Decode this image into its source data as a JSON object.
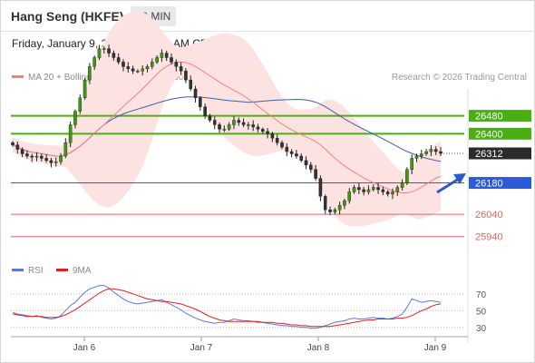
{
  "header": {
    "title": "Hang Seng (HKFE)",
    "timeframe": "30 MIN"
  },
  "datetime": "Friday, January 9, 2026 12:32:21 AM CET",
  "legend": {
    "ma20": {
      "label": "MA 20 + Bollinger Bands",
      "color": "#f08080"
    },
    "ma50": {
      "label": "MA 50",
      "color": "#3e5fa8"
    }
  },
  "credit": "Research © 2026 Trading Central",
  "rsi_legend": {
    "rsi": {
      "label": "RSI",
      "color": "#5b7bd6"
    },
    "ma9": {
      "label": "9MA",
      "color": "#e02020"
    }
  },
  "chart_data": {
    "type": "candlestick",
    "x_labels": [
      "Jan 6",
      "Jan 7",
      "Jan 8",
      "Jan 9"
    ],
    "price_range": [
      25870,
      26600
    ],
    "levels": [
      {
        "value": 26480,
        "label": "26480",
        "kind": "resistance",
        "color": "#4caf11"
      },
      {
        "value": 26400,
        "label": "26400",
        "kind": "resistance",
        "color": "#4caf11"
      },
      {
        "value": 26312,
        "label": "26312",
        "kind": "last",
        "color": "#2a2a2a"
      },
      {
        "value": 26180,
        "label": "26180",
        "kind": "pivot",
        "color": "#2a5bd8"
      },
      {
        "value": 26040,
        "label": "26040",
        "kind": "support",
        "color": "#e06666"
      },
      {
        "value": 25940,
        "label": "25940",
        "kind": "support",
        "color": "#e06666"
      }
    ],
    "close": [
      26350,
      26330,
      26310,
      26300,
      26295,
      26300,
      26290,
      26280,
      26270,
      26275,
      26300,
      26360,
      26440,
      26500,
      26560,
      26640,
      26700,
      26740,
      26780,
      26780,
      26760,
      26740,
      26720,
      26700,
      26690,
      26680,
      26680,
      26690,
      26700,
      26720,
      26740,
      26760,
      26740,
      26720,
      26700,
      26680,
      26640,
      26600,
      26560,
      26520,
      26480,
      26460,
      26440,
      26420,
      26420,
      26440,
      26460,
      26450,
      26440,
      26440,
      26430,
      26420,
      26410,
      26400,
      26380,
      26360,
      26340,
      26320,
      26310,
      26300,
      26280,
      26260,
      26240,
      26200,
      26120,
      26060,
      26050,
      26060,
      26080,
      26100,
      26140,
      26160,
      26150,
      26140,
      26150,
      26160,
      26150,
      26140,
      26130,
      26140,
      26160,
      26180,
      26240,
      26290,
      26300,
      26310,
      26320,
      26330,
      26320,
      26312
    ],
    "rsi": {
      "levels": [
        70,
        50,
        30
      ],
      "rsi": [
        48,
        46,
        45,
        44,
        43,
        44,
        42,
        41,
        40,
        41,
        44,
        50,
        56,
        60,
        66,
        72,
        76,
        78,
        80,
        80,
        77,
        72,
        68,
        64,
        61,
        59,
        58,
        59,
        60,
        61,
        62,
        63,
        60,
        57,
        54,
        51,
        47,
        44,
        41,
        39,
        37,
        36,
        35,
        36,
        36,
        38,
        40,
        39,
        38,
        38,
        37,
        36,
        36,
        35,
        34,
        33,
        32,
        32,
        31,
        31,
        30,
        30,
        29,
        29,
        30,
        32,
        34,
        36,
        37,
        38,
        40,
        41,
        40,
        40,
        41,
        42,
        41,
        41,
        40,
        41,
        43,
        46,
        54,
        64,
        62,
        60,
        61,
        62,
        61,
        60
      ],
      "ma9": [
        46,
        45,
        44,
        43,
        43,
        43,
        43,
        42,
        42,
        42,
        43,
        45,
        48,
        51,
        55,
        59,
        63,
        67,
        71,
        74,
        76,
        76,
        75,
        74,
        72,
        70,
        68,
        66,
        64,
        63,
        62,
        61,
        61,
        60,
        59,
        58,
        56,
        54,
        52,
        49,
        46,
        43,
        41,
        39,
        38,
        37,
        37,
        37,
        37,
        37,
        37,
        37,
        36,
        36,
        36,
        35,
        35,
        34,
        33,
        33,
        32,
        32,
        31,
        31,
        31,
        31,
        31,
        32,
        33,
        34,
        35,
        36,
        37,
        38,
        39,
        39,
        40,
        40,
        40,
        40,
        41,
        41,
        42,
        44,
        47,
        50,
        52,
        55,
        57,
        58
      ]
    }
  }
}
